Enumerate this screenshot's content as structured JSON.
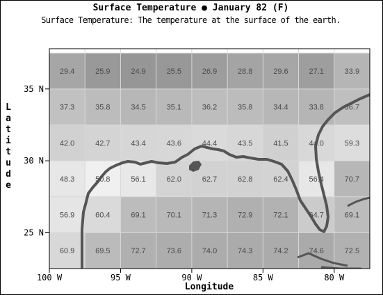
{
  "title": "Surface Temperature ● January 82 (F)",
  "subtitle": "Surface Temperature: The temperature at the surface of the earth.",
  "chart_data": {
    "type": "heatmap",
    "title": "Surface Temperature ● January 82 (F)",
    "subtitle": "Surface Temperature: The temperature at the surface of the earth.",
    "xlabel": "Longitude",
    "ylabel": "Latitude",
    "xlim": [
      -100,
      -77.5
    ],
    "ylim": [
      22.5,
      37.8
    ],
    "x_ticks": [
      {
        "value": -100,
        "label": "100 W"
      },
      {
        "value": -95,
        "label": "95 W"
      },
      {
        "value": -90,
        "label": "90 W"
      },
      {
        "value": -85,
        "label": "85 W"
      },
      {
        "value": -80,
        "label": "80 W"
      }
    ],
    "y_ticks": [
      {
        "value": 35,
        "label": "35 N"
      },
      {
        "value": 30,
        "label": "30 N"
      },
      {
        "value": 25,
        "label": "25 N"
      }
    ],
    "x_centers": [
      -98.75,
      -96.25,
      -93.75,
      -91.25,
      -88.75,
      -86.25,
      -83.75,
      -81.25,
      -78.75
    ],
    "y_centers": [
      36.25,
      33.75,
      31.25,
      28.75,
      26.25,
      23.75
    ],
    "values": [
      [
        "29.4",
        "25.9",
        "24.9",
        "25.5",
        "26.9",
        "28.8",
        "29.6",
        "27.1",
        "33.9"
      ],
      [
        "37.3",
        "35.8",
        "34.5",
        "35.1",
        "36.2",
        "35.8",
        "34.4",
        "33.8",
        "36.7"
      ],
      [
        "42.0",
        "42.7",
        "43.4",
        "43.6",
        "44.4",
        "43.5",
        "41.5",
        "44.0",
        "59.3"
      ],
      [
        "48.3",
        "50.8",
        "56.1",
        "62.0",
        "62.7",
        "62.8",
        "62.4",
        "56.4",
        "70.7"
      ],
      [
        "56.9",
        "60.4",
        "69.1",
        "70.1",
        "71.3",
        "72.9",
        "72.1",
        "64.7",
        "69.1"
      ],
      [
        "60.9",
        "69.5",
        "72.7",
        "73.6",
        "74.0",
        "74.3",
        "74.2",
        "74.6",
        "72.5"
      ]
    ]
  }
}
